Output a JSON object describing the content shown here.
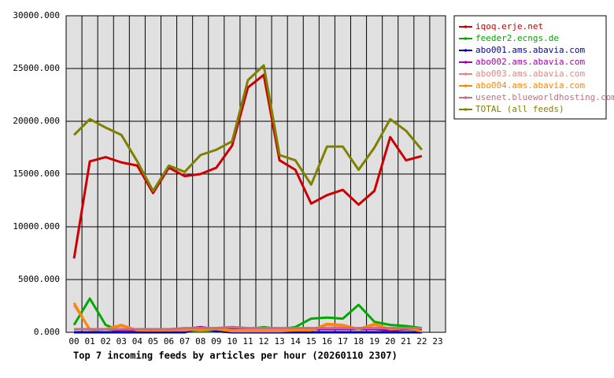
{
  "chart_data": {
    "type": "line",
    "title": "Top 7 incoming feeds by articles per hour (20260110 2307)",
    "categories": [
      "00",
      "01",
      "02",
      "03",
      "04",
      "05",
      "06",
      "07",
      "08",
      "09",
      "10",
      "11",
      "12",
      "13",
      "14",
      "15",
      "16",
      "17",
      "18",
      "19",
      "20",
      "21",
      "22",
      "23"
    ],
    "ylim": [
      0,
      30000
    ],
    "yticks": [
      {
        "value": 0,
        "label": "0.000"
      },
      {
        "value": 5000,
        "label": "5000.000"
      },
      {
        "value": 10000,
        "label": "10000.000"
      },
      {
        "value": 15000,
        "label": "15000.000"
      },
      {
        "value": 20000,
        "label": "20000.000"
      },
      {
        "value": 25000,
        "label": "25000.000"
      },
      {
        "value": 30000,
        "label": "30000.000"
      }
    ],
    "grid": true,
    "legend": "right",
    "series": [
      {
        "name": "iqoq.erje.net",
        "color": "#cc0000",
        "values": [
          7000,
          16200,
          16600,
          16100,
          15800,
          13200,
          15600,
          14800,
          15000,
          15600,
          17700,
          23200,
          24400,
          16300,
          15400,
          12200,
          13000,
          13500,
          12100,
          13400,
          18500,
          16300,
          16700,
          null
        ]
      },
      {
        "name": "feeder2.ecngs.de",
        "color": "#00aa00",
        "values": [
          700,
          3200,
          700,
          100,
          100,
          100,
          100,
          100,
          100,
          100,
          100,
          300,
          500,
          300,
          500,
          1300,
          1400,
          1300,
          2600,
          1000,
          700,
          600,
          400,
          null
        ]
      },
      {
        "name": "abo001.ams.abavia.com",
        "color": "#0000aa",
        "values": [
          0,
          0,
          0,
          0,
          0,
          0,
          0,
          0,
          400,
          100,
          0,
          0,
          0,
          0,
          0,
          0,
          0,
          0,
          0,
          0,
          0,
          0,
          0,
          null
        ]
      },
      {
        "name": "abo002.ams.abavia.com",
        "color": "#aa00aa",
        "values": [
          300,
          300,
          300,
          200,
          200,
          200,
          200,
          300,
          500,
          300,
          300,
          300,
          300,
          300,
          300,
          300,
          300,
          300,
          300,
          300,
          200,
          300,
          200,
          null
        ]
      },
      {
        "name": "abo003.ams.abavia.com",
        "color": "#f08080",
        "values": [
          2600,
          300,
          300,
          600,
          200,
          200,
          200,
          200,
          300,
          300,
          200,
          200,
          200,
          200,
          200,
          200,
          700,
          600,
          300,
          700,
          300,
          400,
          100,
          null
        ]
      },
      {
        "name": "abo004.ams.abavia.com",
        "color": "#ff8800",
        "values": [
          2800,
          200,
          300,
          700,
          200,
          200,
          200,
          300,
          200,
          300,
          100,
          100,
          100,
          100,
          200,
          200,
          800,
          700,
          300,
          800,
          300,
          400,
          100,
          null
        ]
      },
      {
        "name": "usenet.blueworldhosting.com",
        "color": "#c07080",
        "values": [
          300,
          300,
          300,
          300,
          300,
          300,
          300,
          400,
          400,
          400,
          500,
          400,
          400,
          400,
          400,
          400,
          400,
          400,
          400,
          400,
          400,
          400,
          400,
          null
        ]
      },
      {
        "name": "TOTAL (all feeds)",
        "color": "#808000",
        "values": [
          18700,
          20200,
          19400,
          18700,
          16200,
          13400,
          15800,
          15200,
          16800,
          17300,
          18100,
          23900,
          25300,
          16800,
          16300,
          14000,
          17600,
          17600,
          15400,
          17500,
          20200,
          19100,
          17300,
          null
        ]
      }
    ]
  }
}
